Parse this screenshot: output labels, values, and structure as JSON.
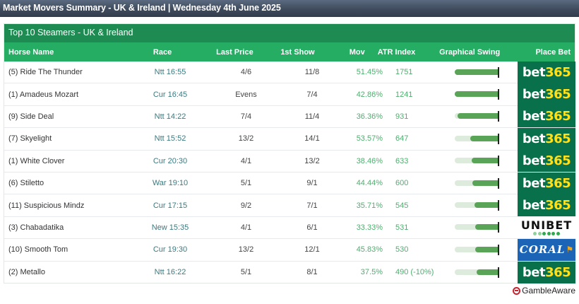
{
  "banner": {
    "title": "Market Movers Summary - UK & Ireland | Wednesday 4th June 2025"
  },
  "panel": {
    "title": "Top 10 Steamers - UK & Ireland",
    "columns": {
      "horse": "Horse Name",
      "race": "Race",
      "last_price": "Last Price",
      "first_show": "1st Show",
      "mov": "Mov",
      "atr": "ATR Index",
      "swing": "Graphical Swing",
      "bet": "Place Bet"
    },
    "rows": [
      {
        "horse": "(5) Ride The Thunder",
        "race": "Ntt 16:55",
        "last_price": "4/6",
        "first_show": "11/8",
        "mov": "51.45%",
        "atr": "1751",
        "swing_pct": 100,
        "bookmaker": "bet365"
      },
      {
        "horse": "(1) Amadeus Mozart",
        "race": "Cur 16:45",
        "last_price": "Evens",
        "first_show": "7/4",
        "mov": "42.86%",
        "atr": "1241",
        "swing_pct": 100,
        "bookmaker": "bet365"
      },
      {
        "horse": "(9) Side Deal",
        "race": "Ntt 14:22",
        "last_price": "7/4",
        "first_show": "11/4",
        "mov": "36.36%",
        "atr": "931",
        "swing_pct": 94,
        "bookmaker": "bet365"
      },
      {
        "horse": "(7) Skyelight",
        "race": "Ntt 15:52",
        "last_price": "13/2",
        "first_show": "14/1",
        "mov": "53.57%",
        "atr": "647",
        "swing_pct": 65,
        "bookmaker": "bet365"
      },
      {
        "horse": "(1) White Clover",
        "race": "Cur 20:30",
        "last_price": "4/1",
        "first_show": "13/2",
        "mov": "38.46%",
        "atr": "633",
        "swing_pct": 62,
        "bookmaker": "bet365"
      },
      {
        "horse": "(6) Stiletto",
        "race": "War 19:10",
        "last_price": "5/1",
        "first_show": "9/1",
        "mov": "44.44%",
        "atr": "600",
        "swing_pct": 59,
        "bookmaker": "bet365"
      },
      {
        "horse": "(11) Suspicious Mindz",
        "race": "Cur 17:15",
        "last_price": "9/2",
        "first_show": "7/1",
        "mov": "35.71%",
        "atr": "545",
        "swing_pct": 55,
        "bookmaker": "bet365"
      },
      {
        "horse": "(3) Chabadatika",
        "race": "New 15:35",
        "last_price": "4/1",
        "first_show": "6/1",
        "mov": "33.33%",
        "atr": "531",
        "swing_pct": 54,
        "bookmaker": "unibet"
      },
      {
        "horse": "(10) Smooth Tom",
        "race": "Cur 19:30",
        "last_price": "13/2",
        "first_show": "12/1",
        "mov": "45.83%",
        "atr": "530",
        "swing_pct": 54,
        "bookmaker": "coral"
      },
      {
        "horse": "(2) Metallo",
        "race": "Ntt 16:22",
        "last_price": "5/1",
        "first_show": "8/1",
        "mov": "37.5%",
        "atr": "490 (-10%)",
        "swing_pct": 50,
        "bookmaker": "bet365"
      }
    ]
  },
  "bookmakers": {
    "bet365": {
      "word": "bet",
      "num": "365",
      "bg": "#08704b"
    },
    "unibet": {
      "word": "UNIBET",
      "bg": "#ffffff"
    },
    "coral": {
      "word": "CORAL",
      "bg": "#1b64b6"
    }
  },
  "colors": {
    "banner": "#3f4b5d",
    "title_bar": "#1e8b52",
    "header_row": "#24ad63",
    "swing_fill": "#5aa457",
    "swing_track": "#dcebdc",
    "mov_text": "#4caf6e",
    "race_text": "#3a7a80"
  },
  "footer": {
    "gambleaware": "GambleAware"
  }
}
